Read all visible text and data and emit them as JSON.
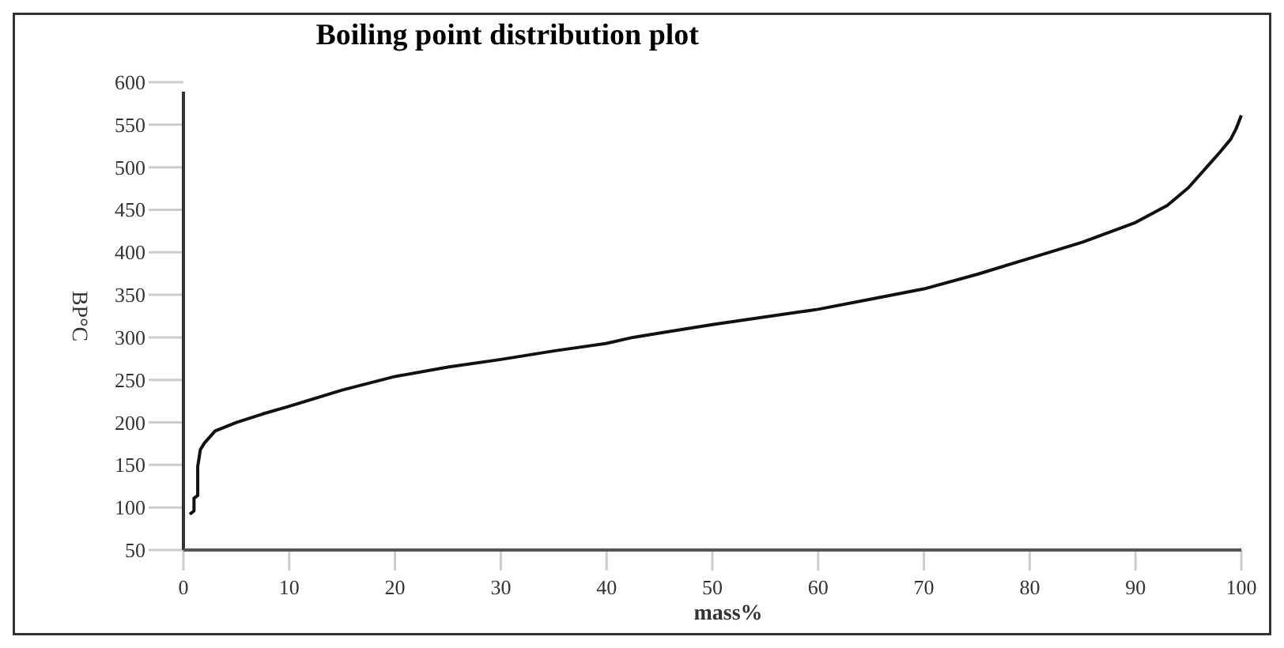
{
  "chart_data": {
    "type": "line",
    "title": "Boiling point distribution plot",
    "xlabel": "mass%",
    "ylabel": "BP°C",
    "x": [
      0.6,
      1.0,
      1.0,
      1.35,
      1.35,
      1.6,
      2,
      3,
      5,
      7.5,
      10,
      15,
      20,
      25,
      30,
      35,
      40,
      42.5,
      45,
      50,
      55,
      60,
      65,
      70,
      75,
      80,
      85,
      90,
      93,
      95,
      97,
      98,
      99,
      99.5,
      100
    ],
    "series": [
      {
        "color": "#111111",
        "values": [
          92,
          96,
          111,
          114,
          148,
          168,
          176,
          190,
          200,
          210,
          219,
          238,
          254,
          265,
          274,
          284,
          293,
          300,
          305,
          315,
          324,
          333,
          345,
          357,
          374,
          393,
          412,
          435,
          455,
          476,
          504,
          518,
          533,
          545,
          561
        ]
      }
    ],
    "xlim": [
      0,
      100
    ],
    "xticks": [
      0,
      10,
      20,
      30,
      40,
      50,
      60,
      70,
      80,
      90,
      100
    ],
    "ylim": [
      50,
      600
    ],
    "yticks": [
      50,
      100,
      150,
      200,
      250,
      300,
      350,
      400,
      450,
      500,
      550,
      600
    ],
    "grid": false,
    "marker": "none",
    "line_style": "solid"
  }
}
